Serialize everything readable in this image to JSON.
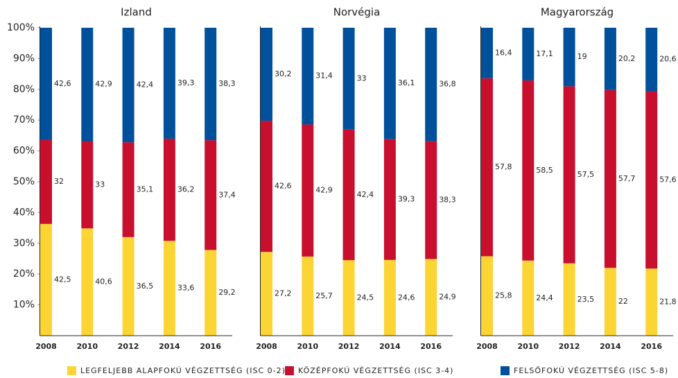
{
  "chart_data": {
    "type": "bar",
    "stacking": "percent",
    "categories": [
      "2008",
      "2010",
      "2012",
      "2014",
      "2016"
    ],
    "ylim": [
      0,
      100
    ],
    "yticks": [
      {
        "value": 10,
        "label": "10%"
      },
      {
        "value": 20,
        "label": "20%"
      },
      {
        "value": 30,
        "label": "30%"
      },
      {
        "value": 40,
        "label": "40%"
      },
      {
        "value": 50,
        "label": "50%"
      },
      {
        "value": 60,
        "label": "60%"
      },
      {
        "value": 70,
        "label": "70%"
      },
      {
        "value": 80,
        "label": "80%"
      },
      {
        "value": 90,
        "label": "90%"
      },
      {
        "value": 100,
        "label": "100%"
      }
    ],
    "legend": "bottom",
    "series": [
      {
        "name": "LEGFELJEBB ALAPFOKÚ VÉGZETTSÉG (ISC 0-2)",
        "color": "#fcd535"
      },
      {
        "name": "KÖZÉPFOKÚ VÉGZETTSÉG (ISC 3-4)",
        "color": "#c8102e"
      },
      {
        "name": "FELSŐFOKÚ VÉGZETTSÉG (ISC 5-8)",
        "color": "#00509b"
      }
    ],
    "panels": [
      {
        "title": "Izland",
        "series": [
          {
            "values": [
              42.5,
              40.6,
              36.5,
              33.6,
              29.2
            ],
            "value_labels": [
              "42,5",
              "40,6",
              "36,5",
              "33,6",
              "29,2"
            ]
          },
          {
            "values": [
              32,
              33,
              35.1,
              36.2,
              37.4
            ],
            "value_labels": [
              "32",
              "33",
              "35,1",
              "36,2",
              "37,4"
            ]
          },
          {
            "values": [
              42.6,
              42.9,
              42.4,
              39.3,
              38.3
            ],
            "value_labels": [
              "42,6",
              "42,9",
              "42,4",
              "39,3",
              "38,3"
            ]
          }
        ]
      },
      {
        "title": "Norvégia",
        "series": [
          {
            "values": [
              27.2,
              25.7,
              24.5,
              24.6,
              24.9
            ],
            "value_labels": [
              "27,2",
              "25,7",
              "24,5",
              "24,6",
              "24,9"
            ]
          },
          {
            "values": [
              42.6,
              42.9,
              42.4,
              39.3,
              38.3
            ],
            "value_labels": [
              "42,6",
              "42,9",
              "42,4",
              "39,3",
              "38,3"
            ]
          },
          {
            "values": [
              30.2,
              31.4,
              33,
              36.1,
              36.8
            ],
            "value_labels": [
              "30,2",
              "31,4",
              "33",
              "36,1",
              "36,8"
            ]
          }
        ]
      },
      {
        "title": "Magyarország",
        "series": [
          {
            "values": [
              25.8,
              24.4,
              23.5,
              22,
              21.8
            ],
            "value_labels": [
              "25,8",
              "24,4",
              "23,5",
              "22",
              "21,8"
            ]
          },
          {
            "values": [
              57.8,
              58.5,
              57.5,
              57.7,
              57.6
            ],
            "value_labels": [
              "57,8",
              "58,5",
              "57,5",
              "57,7",
              "57,6"
            ]
          },
          {
            "values": [
              16.4,
              17.1,
              19,
              20.2,
              20.6
            ],
            "value_labels": [
              "16,4",
              "17,1",
              "19",
              "20,2",
              "20,6"
            ]
          }
        ]
      }
    ]
  }
}
